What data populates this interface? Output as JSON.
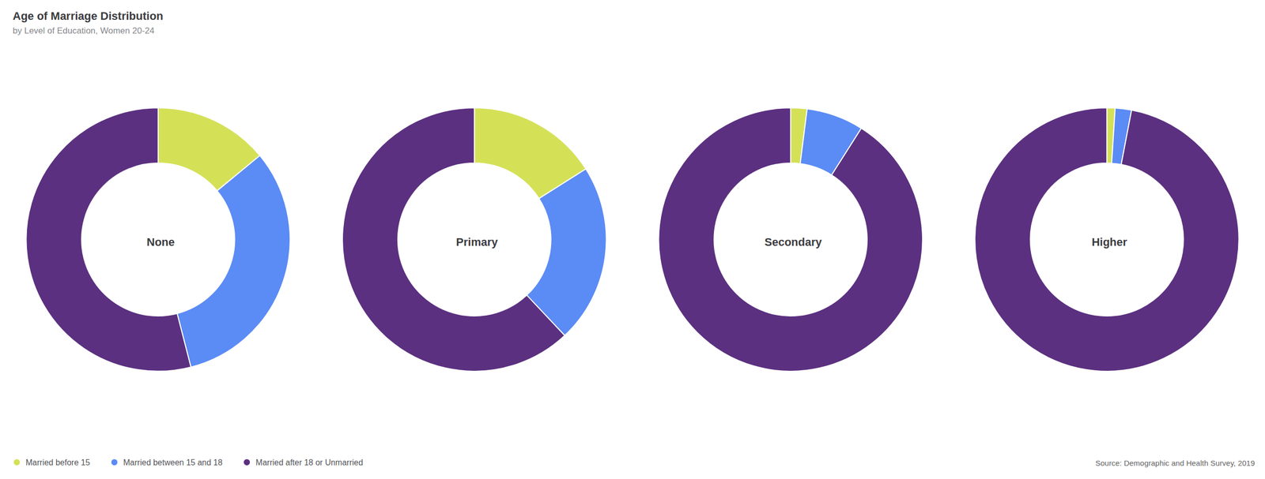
{
  "chart_data": {
    "type": "pie",
    "title": "Age of Marriage Distribution",
    "subtitle": "by Level of Education, Women 20-24",
    "categories": [
      "Married before 15",
      "Married between 15 and 18",
      "Married after 18 or Unmarried"
    ],
    "colors": [
      "#d4e157",
      "#5b8bf5",
      "#5b3080"
    ],
    "series": [
      {
        "name": "None",
        "values": [
          14,
          32,
          54
        ]
      },
      {
        "name": "Primary",
        "values": [
          16,
          22,
          62
        ]
      },
      {
        "name": "Secondary",
        "values": [
          2,
          7,
          91
        ]
      },
      {
        "name": "Higher",
        "values": [
          1,
          2,
          97
        ]
      }
    ],
    "annotations": [
      "Source: Demographic and Health Survey, 2019"
    ],
    "legend": "bottom"
  }
}
